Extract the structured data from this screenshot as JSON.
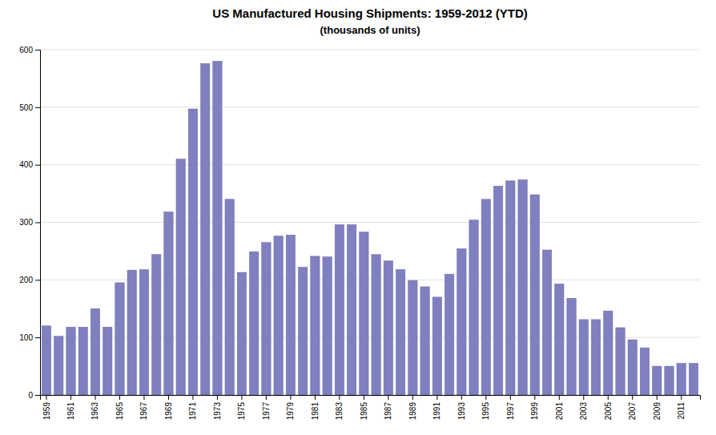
{
  "chart_data": {
    "type": "bar",
    "title": "US Manufactured Housing Shipments: 1959-2012 (YTD)",
    "subtitle": "(thousands of units)",
    "categories": [
      "1959",
      null,
      "1961",
      null,
      "1963",
      null,
      "1965",
      null,
      "1967",
      null,
      "1969",
      null,
      "1971",
      null,
      "1973",
      null,
      "1975",
      null,
      "1977",
      null,
      "1979",
      null,
      "1981",
      null,
      "1983",
      null,
      "1985",
      null,
      "1987",
      null,
      "1989",
      null,
      "1991",
      null,
      "1993",
      null,
      "1995",
      null,
      "1997",
      null,
      "1999",
      null,
      "2001",
      null,
      "2003",
      null,
      "2005",
      null,
      "2007",
      null,
      "2009",
      null,
      "2011",
      null
    ],
    "values": [
      120,
      102,
      118,
      118,
      150,
      118,
      195,
      217,
      218,
      244,
      318,
      410,
      497,
      576,
      580,
      340,
      213,
      249,
      265,
      276,
      278,
      222,
      241,
      240,
      296,
      296,
      283,
      244,
      233,
      218,
      199,
      188,
      170,
      210,
      254,
      304,
      340,
      363,
      372,
      374,
      348,
      252,
      193,
      168,
      131,
      131,
      146,
      117,
      96,
      82,
      50,
      50,
      55,
      55
    ],
    "color": "#8080c0",
    "ylim": [
      0,
      600
    ],
    "yticks": [
      0,
      100,
      200,
      300,
      400,
      500,
      600
    ],
    "grid": true
  }
}
